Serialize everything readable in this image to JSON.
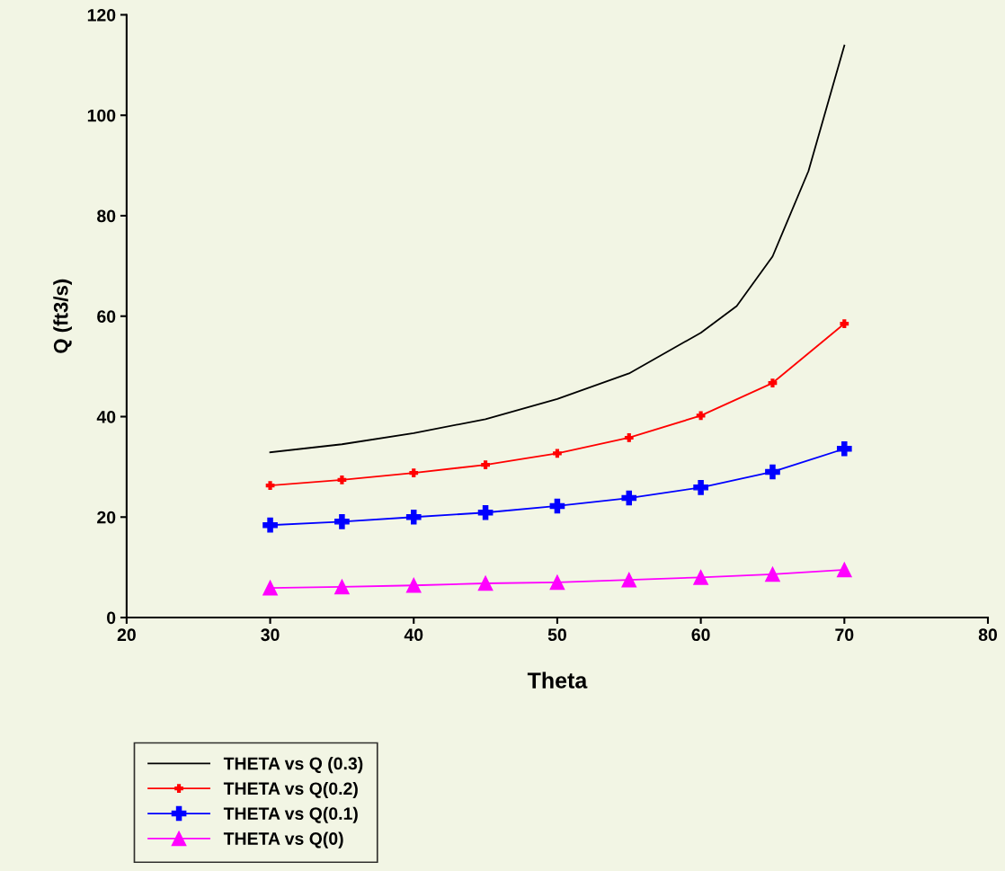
{
  "chart_data": {
    "type": "line",
    "xlabel": "Theta",
    "ylabel": "Q (ft3/s)",
    "xlim": [
      20,
      80
    ],
    "xticks": [
      20,
      30,
      40,
      50,
      60,
      70,
      80
    ],
    "ylim": [
      0,
      120
    ],
    "yticks": [
      0,
      20,
      40,
      60,
      80,
      100,
      120
    ],
    "grid": false,
    "legend": "bottom left",
    "series": [
      {
        "name": "THETA vs Q (0.3)",
        "color": "#000000",
        "marker": "none",
        "x": [
          30,
          35,
          40,
          45,
          50,
          55,
          60,
          62.5,
          65,
          67.5,
          70
        ],
        "values": [
          32.9,
          34.5,
          36.7,
          39.5,
          43.5,
          48.6,
          56.7,
          62,
          71.9,
          88.9,
          113.9
        ]
      },
      {
        "name": "THETA vs Q(0.2)",
        "color": "#ff0000",
        "marker": "cross",
        "x": [
          30,
          35,
          40,
          45,
          50,
          55,
          60,
          65,
          70
        ],
        "values": [
          26.3,
          27.4,
          28.8,
          30.4,
          32.7,
          35.8,
          40.2,
          46.7,
          58.5
        ]
      },
      {
        "name": "THETA vs Q(0.1)",
        "color": "#0000ff",
        "marker": "cross",
        "x": [
          30,
          35,
          40,
          45,
          50,
          55,
          60,
          65,
          70
        ],
        "values": [
          18.4,
          19.1,
          20.0,
          20.9,
          22.2,
          23.8,
          25.9,
          29.0,
          33.6
        ]
      },
      {
        "name": "THETA vs Q(0)",
        "color": "#ff00ff",
        "marker": "triangle",
        "x": [
          30,
          35,
          40,
          45,
          50,
          55,
          60,
          65,
          70
        ],
        "values": [
          5.9,
          6.1,
          6.4,
          6.8,
          7.0,
          7.5,
          8.0,
          8.6,
          9.5
        ]
      }
    ]
  }
}
